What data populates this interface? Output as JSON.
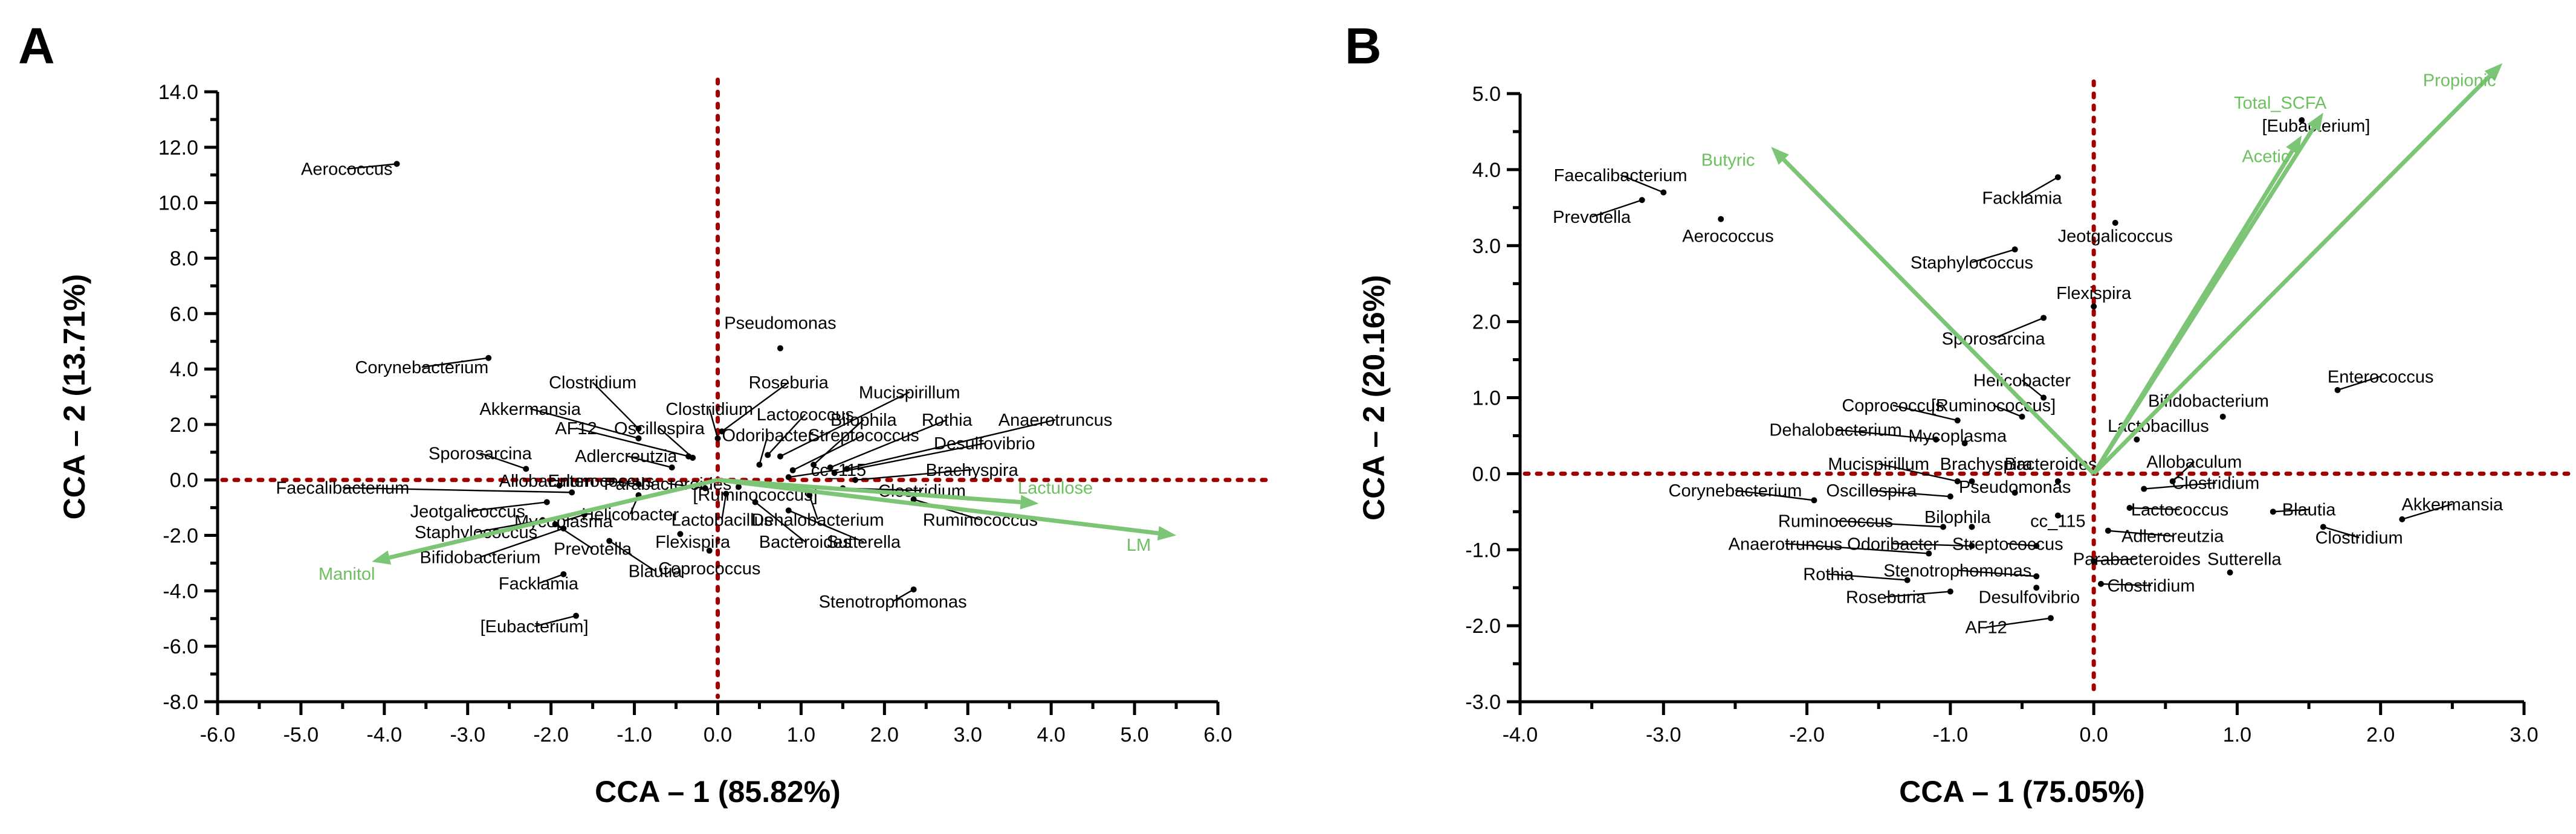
{
  "colors": {
    "reference_line": "#a00000",
    "vector": "#7cc576",
    "vector_label": "#6cc05f",
    "point": "#000000"
  },
  "chart_data": [
    {
      "panel": "A",
      "type": "scatter",
      "xlabel": "CCA – 1 (85.82%)",
      "ylabel": "CCA – 2 (13.71%)",
      "xlim": [
        -6.0,
        6.0
      ],
      "ylim": [
        -8.0,
        14.0
      ],
      "xticks": [
        "-6.0",
        "-5.0",
        "-4.0",
        "-3.0",
        "-2.0",
        "-1.0",
        "0.0",
        "1.0",
        "2.0",
        "3.0",
        "4.0",
        "5.0",
        "6.0"
      ],
      "yticks": [
        "-8.0",
        "-6.0",
        "-4.0",
        "-2.0",
        "0.0",
        "2.0",
        "4.0",
        "6.0",
        "8.0",
        "10.0",
        "12.0",
        "14.0"
      ],
      "vectors": [
        {
          "name": "Lactulose",
          "x": 3.85,
          "y": -0.85,
          "lx": 4.05,
          "ly": -0.5
        },
        {
          "name": "LM",
          "x": 5.5,
          "y": -2.0,
          "lx": 5.05,
          "ly": -2.55
        },
        {
          "name": "Manitol",
          "x": -4.15,
          "y": -2.95,
          "lx": -4.45,
          "ly": -3.6
        }
      ],
      "points": [
        {
          "name": "Aerococcus",
          "x": -3.85,
          "y": 11.4,
          "lx": -4.45,
          "ly": 11.0
        },
        {
          "name": "Corynebacterium",
          "x": -2.75,
          "y": 4.4,
          "lx": -3.55,
          "ly": 3.85
        },
        {
          "name": "Pseudomonas",
          "x": 0.75,
          "y": 4.75,
          "lx": 0.75,
          "ly": 5.45
        },
        {
          "name": "Clostridium",
          "x": -0.95,
          "y": 1.85,
          "lx": -1.5,
          "ly": 3.3
        },
        {
          "name": "Roseburia",
          "x": 0.05,
          "y": 1.75,
          "lx": 0.85,
          "ly": 3.3
        },
        {
          "name": "Mucispirillum",
          "x": 0.75,
          "y": 0.85,
          "lx": 2.3,
          "ly": 2.95
        },
        {
          "name": "Akkermansia",
          "x": -0.95,
          "y": 1.5,
          "lx": -2.25,
          "ly": 2.35
        },
        {
          "name": "Clostridium",
          "x": 0.0,
          "y": 1.5,
          "lx": -0.1,
          "ly": 2.35
        },
        {
          "name": "Lactococcus",
          "x": 0.6,
          "y": 0.9,
          "lx": 1.05,
          "ly": 2.15
        },
        {
          "name": "Bilophila",
          "x": 1.15,
          "y": 0.55,
          "lx": 1.75,
          "ly": 1.95
        },
        {
          "name": "Rothia",
          "x": 1.35,
          "y": 0.45,
          "lx": 2.75,
          "ly": 1.95
        },
        {
          "name": "Anaerotruncus",
          "x": 1.55,
          "y": 0.4,
          "lx": 4.05,
          "ly": 1.95
        },
        {
          "name": "AF12",
          "x": -0.35,
          "y": 0.85,
          "lx": -1.7,
          "ly": 1.65
        },
        {
          "name": "Oscillospira",
          "x": -0.3,
          "y": 0.8,
          "lx": -0.7,
          "ly": 1.65
        },
        {
          "name": "Odoribacter",
          "x": 0.5,
          "y": 0.55,
          "lx": 0.6,
          "ly": 1.4
        },
        {
          "name": "Streptococcus",
          "x": 0.9,
          "y": 0.35,
          "lx": 1.75,
          "ly": 1.4
        },
        {
          "name": "Desulfovibrio",
          "x": 1.4,
          "y": 0.25,
          "lx": 3.2,
          "ly": 1.1
        },
        {
          "name": "Adlercreutzia",
          "x": -0.55,
          "y": 0.45,
          "lx": -1.1,
          "ly": 0.65
        },
        {
          "name": "cc_115",
          "x": 0.85,
          "y": 0.1,
          "lx": 1.45,
          "ly": 0.15
        },
        {
          "name": "Brachyspira",
          "x": 1.65,
          "y": 0.0,
          "lx": 3.05,
          "ly": 0.15
        },
        {
          "name": "Sporosarcina",
          "x": -2.3,
          "y": 0.4,
          "lx": -2.85,
          "ly": 0.75
        },
        {
          "name": "Allobaculum",
          "x": -1.9,
          "y": -0.2,
          "lx": -2.05,
          "ly": -0.25
        },
        {
          "name": "Faecalibacterium",
          "x": -1.75,
          "y": -0.45,
          "lx": -4.5,
          "ly": -0.5
        },
        {
          "name": "Enterococcus",
          "x": -0.95,
          "y": -0.15,
          "lx": -1.4,
          "ly": -0.25
        },
        {
          "name": "Parabacteroides",
          "x": -0.15,
          "y": -0.3,
          "lx": -0.6,
          "ly": -0.35
        },
        {
          "name": "[Ruminococcus]",
          "x": 0.25,
          "y": -0.25,
          "lx": 0.45,
          "ly": -0.75
        },
        {
          "name": "Clostridium",
          "x": 1.5,
          "y": -0.3,
          "lx": 2.45,
          "ly": -0.6
        },
        {
          "name": "Jeotgalicoccus",
          "x": -2.05,
          "y": -0.8,
          "lx": -3.0,
          "ly": -1.35
        },
        {
          "name": "Helicobacter",
          "x": -0.95,
          "y": -0.55,
          "lx": -1.05,
          "ly": -1.45
        },
        {
          "name": "Lactobacillus",
          "x": 0.1,
          "y": -0.5,
          "lx": 0.05,
          "ly": -1.65
        },
        {
          "name": "Dehalobacterium",
          "x": 1.1,
          "y": -0.55,
          "lx": 1.2,
          "ly": -1.65
        },
        {
          "name": "Ruminococcus",
          "x": 2.35,
          "y": -0.7,
          "lx": 3.15,
          "ly": -1.65
        },
        {
          "name": "Mycoplasma",
          "x": -1.6,
          "y": -1.25,
          "lx": -1.85,
          "ly": -1.7
        },
        {
          "name": "Staphylococcus",
          "x": -2.1,
          "y": -1.45,
          "lx": -2.9,
          "ly": -2.1
        },
        {
          "name": "Prevotella",
          "x": -1.95,
          "y": -1.6,
          "lx": -1.5,
          "ly": -2.7
        },
        {
          "name": "Flexispira",
          "x": -0.45,
          "y": -1.95,
          "lx": -0.3,
          "ly": -2.45
        },
        {
          "name": "Bacteroides",
          "x": 0.45,
          "y": -0.8,
          "lx": 1.05,
          "ly": -2.45
        },
        {
          "name": "Sutterella",
          "x": 0.85,
          "y": -1.1,
          "lx": 1.75,
          "ly": -2.45
        },
        {
          "name": "Bifidobacterium",
          "x": -1.85,
          "y": -1.75,
          "lx": -2.85,
          "ly": -3.0
        },
        {
          "name": "Blautia",
          "x": -1.3,
          "y": -2.2,
          "lx": -0.75,
          "ly": -3.5
        },
        {
          "name": "Coprococcus",
          "x": -0.1,
          "y": -2.55,
          "lx": -0.1,
          "ly": -3.4
        },
        {
          "name": "Facklamia",
          "x": -1.85,
          "y": -3.4,
          "lx": -2.15,
          "ly": -3.95
        },
        {
          "name": "Stenotrophomonas",
          "x": 2.35,
          "y": -3.95,
          "lx": 2.1,
          "ly": -4.6
        },
        {
          "name": "[Eubacterium]",
          "x": -1.7,
          "y": -4.9,
          "lx": -2.2,
          "ly": -5.5
        }
      ]
    },
    {
      "panel": "B",
      "type": "scatter",
      "xlabel": "CCA – 1 (75.05%)",
      "ylabel": "CCA – 2 (20.16%)",
      "xlim": [
        -4.0,
        3.0
      ],
      "ylim": [
        -3.0,
        5.0
      ],
      "xticks": [
        "-4.0",
        "-3.0",
        "-2.0",
        "-1.0",
        "0.0",
        "1.0",
        "2.0",
        "3.0"
      ],
      "yticks": [
        "-3.0",
        "-2.0",
        "-1.0",
        "0.0",
        "1.0",
        "2.0",
        "3.0",
        "4.0",
        "5.0"
      ],
      "vectors": [
        {
          "name": "Butyric",
          "x": -2.25,
          "y": 4.3,
          "lx": -2.55,
          "ly": 4.05
        },
        {
          "name": "Total_SCFA",
          "x": 1.6,
          "y": 4.75,
          "lx": 1.3,
          "ly": 4.8
        },
        {
          "name": "Acetic",
          "x": 1.45,
          "y": 4.45,
          "lx": 1.2,
          "ly": 4.1
        },
        {
          "name": "Propionic",
          "x": 2.85,
          "y": 5.4,
          "lx": 2.55,
          "ly": 5.1
        }
      ],
      "points": [
        {
          "name": "Faecalibacterium",
          "x": -3.0,
          "y": 3.7,
          "lx": -3.3,
          "ly": 3.85
        },
        {
          "name": "Prevotella",
          "x": -3.15,
          "y": 3.6,
          "lx": -3.5,
          "ly": 3.3
        },
        {
          "name": "Aerococcus",
          "x": -2.6,
          "y": 3.35,
          "lx": -2.55,
          "ly": 3.05
        },
        {
          "name": "[Eubacterium]",
          "x": 1.45,
          "y": 4.65,
          "lx": 1.55,
          "ly": 4.5
        },
        {
          "name": "Facklamia",
          "x": -0.25,
          "y": 3.9,
          "lx": -0.5,
          "ly": 3.55
        },
        {
          "name": "Jeotgalicoccus",
          "x": 0.15,
          "y": 3.3,
          "lx": 0.15,
          "ly": 3.05
        },
        {
          "name": "Staphylococcus",
          "x": -0.55,
          "y": 2.95,
          "lx": -0.85,
          "ly": 2.7
        },
        {
          "name": "Flexispira",
          "x": 0.0,
          "y": 2.2,
          "lx": 0.0,
          "ly": 2.3
        },
        {
          "name": "Sporosarcina",
          "x": -0.35,
          "y": 2.05,
          "lx": -0.7,
          "ly": 1.7
        },
        {
          "name": "Enterococcus",
          "x": 1.7,
          "y": 1.1,
          "lx": 2.0,
          "ly": 1.2
        },
        {
          "name": "Bifidobacterium",
          "x": 0.9,
          "y": 0.75,
          "lx": 0.8,
          "ly": 0.88
        },
        {
          "name": "Helicobacter",
          "x": -0.35,
          "y": 1.0,
          "lx": -0.5,
          "ly": 1.15
        },
        {
          "name": "Coprococcus",
          "x": -0.95,
          "y": 0.7,
          "lx": -1.4,
          "ly": 0.82
        },
        {
          "name": "[Ruminococcus]",
          "x": -0.5,
          "y": 0.75,
          "lx": -0.7,
          "ly": 0.82
        },
        {
          "name": "Lactobacillus",
          "x": 0.3,
          "y": 0.45,
          "lx": 0.45,
          "ly": 0.55
        },
        {
          "name": "Dehalobacterium",
          "x": -1.1,
          "y": 0.45,
          "lx": -1.8,
          "ly": 0.5
        },
        {
          "name": "Mycoplasma",
          "x": -0.9,
          "y": 0.4,
          "lx": -0.95,
          "ly": 0.42
        },
        {
          "name": "Allobaculum",
          "x": 0.55,
          "y": -0.1,
          "lx": 0.7,
          "ly": 0.08
        },
        {
          "name": "Mucispirillum",
          "x": -0.95,
          "y": -0.1,
          "lx": -1.5,
          "ly": 0.05
        },
        {
          "name": "Brachyspira",
          "x": -0.85,
          "y": -0.1,
          "lx": -0.75,
          "ly": 0.05
        },
        {
          "name": "Bacteroides",
          "x": -0.25,
          "y": -0.1,
          "lx": -0.3,
          "ly": 0.05
        },
        {
          "name": "Corynebacterium",
          "x": -1.95,
          "y": -0.35,
          "lx": -2.5,
          "ly": -0.3
        },
        {
          "name": "Oscillospira",
          "x": -1.0,
          "y": -0.3,
          "lx": -1.55,
          "ly": -0.3
        },
        {
          "name": "Pseudomonas",
          "x": -0.55,
          "y": -0.25,
          "lx": -0.55,
          "ly": -0.25
        },
        {
          "name": "Clostridium",
          "x": 0.35,
          "y": -0.2,
          "lx": 0.85,
          "ly": -0.2
        },
        {
          "name": "Ruminococcus",
          "x": -1.05,
          "y": -0.7,
          "lx": -1.8,
          "ly": -0.7
        },
        {
          "name": "Bilophila",
          "x": -0.85,
          "y": -0.7,
          "lx": -0.95,
          "ly": -0.65
        },
        {
          "name": "cc_115",
          "x": -0.25,
          "y": -0.55,
          "lx": -0.25,
          "ly": -0.7
        },
        {
          "name": "Lactococcus",
          "x": 0.25,
          "y": -0.45,
          "lx": 0.6,
          "ly": -0.55
        },
        {
          "name": "Blautia",
          "x": 1.25,
          "y": -0.5,
          "lx": 1.5,
          "ly": -0.55
        },
        {
          "name": "Akkermansia",
          "x": 2.15,
          "y": -0.6,
          "lx": 2.5,
          "ly": -0.48
        },
        {
          "name": "Clostridium",
          "x": 1.6,
          "y": -0.7,
          "lx": 1.85,
          "ly": -0.92
        },
        {
          "name": "Adlercreutzia",
          "x": 0.1,
          "y": -0.75,
          "lx": 0.55,
          "ly": -0.9
        },
        {
          "name": "Anaerotruncus",
          "x": -1.15,
          "y": -1.05,
          "lx": -2.15,
          "ly": -1.0
        },
        {
          "name": "Odoribacter",
          "x": -0.85,
          "y": -0.95,
          "lx": -1.4,
          "ly": -1.0
        },
        {
          "name": "Streptococcus",
          "x": -0.4,
          "y": -0.95,
          "lx": -0.6,
          "ly": -1.0
        },
        {
          "name": "Parabacteroides",
          "x": 0.0,
          "y": -1.15,
          "lx": 0.3,
          "ly": -1.2
        },
        {
          "name": "Sutterella",
          "x": 0.95,
          "y": -1.3,
          "lx": 1.05,
          "ly": -1.2
        },
        {
          "name": "Rothia",
          "x": -1.3,
          "y": -1.4,
          "lx": -1.85,
          "ly": -1.4
        },
        {
          "name": "Stenotrophomonas",
          "x": -0.4,
          "y": -1.35,
          "lx": -0.95,
          "ly": -1.35
        },
        {
          "name": "Clostridium",
          "x": 0.05,
          "y": -1.45,
          "lx": 0.4,
          "ly": -1.55
        },
        {
          "name": "Roseburia",
          "x": -1.0,
          "y": -1.55,
          "lx": -1.45,
          "ly": -1.7
        },
        {
          "name": "Desulfovibrio",
          "x": -0.4,
          "y": -1.5,
          "lx": -0.45,
          "ly": -1.7
        },
        {
          "name": "AF12",
          "x": -0.3,
          "y": -1.9,
          "lx": -0.75,
          "ly": -2.1
        }
      ]
    }
  ]
}
